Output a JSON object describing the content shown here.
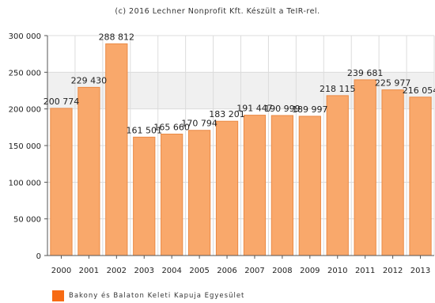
{
  "caption": "(c) 2016 Lechner Nonprofit Kft. Készült a TeIR-rel.",
  "chart_data": {
    "type": "bar",
    "categories": [
      "2000",
      "2001",
      "2002",
      "2003",
      "2004",
      "2005",
      "2006",
      "2007",
      "2008",
      "2009",
      "2010",
      "2011",
      "2012",
      "2013"
    ],
    "series": [
      {
        "name": "Bakony és Balaton Keleti Kapuja Egyesület",
        "values": [
          200774,
          229430,
          288812,
          161501,
          165660,
          170794,
          183201,
          191447,
          190999,
          189997,
          218115,
          239681,
          225977,
          216054
        ]
      }
    ],
    "value_labels": [
      "200 774",
      "229 430",
      "288 812",
      "161 501",
      "165 660",
      "170 794",
      "183 201",
      "191 447",
      "190 999",
      "189 997",
      "218 115",
      "239 681",
      "225 977",
      "216 054"
    ],
    "ylim": [
      0,
      300000
    ],
    "yticks": [
      0,
      50000,
      100000,
      150000,
      200000,
      250000,
      300000
    ],
    "ytick_labels": [
      "0",
      "50 000",
      "100 000",
      "150 000",
      "200 000",
      "250 000",
      "300 000"
    ],
    "grid": true,
    "legend_position": "bottom-left",
    "highlight_band": [
      200000,
      250000
    ],
    "colors": {
      "bar_fill": "#f9a86b",
      "bar_stroke": "#ea8a45",
      "legend_swatch": "#f76b14",
      "grid": "#dcdcdc",
      "band": "#f0f0f0",
      "axis": "#555555"
    }
  }
}
